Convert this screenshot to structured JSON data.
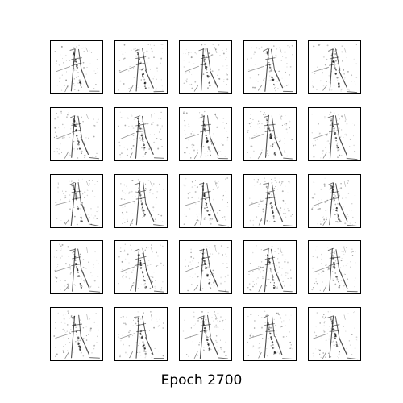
{
  "caption": "Epoch 2700",
  "grid": {
    "rows": 5,
    "cols": 5
  },
  "colors": {
    "background": "#ffffff",
    "frame": "#000000",
    "ink": "#111111"
  }
}
